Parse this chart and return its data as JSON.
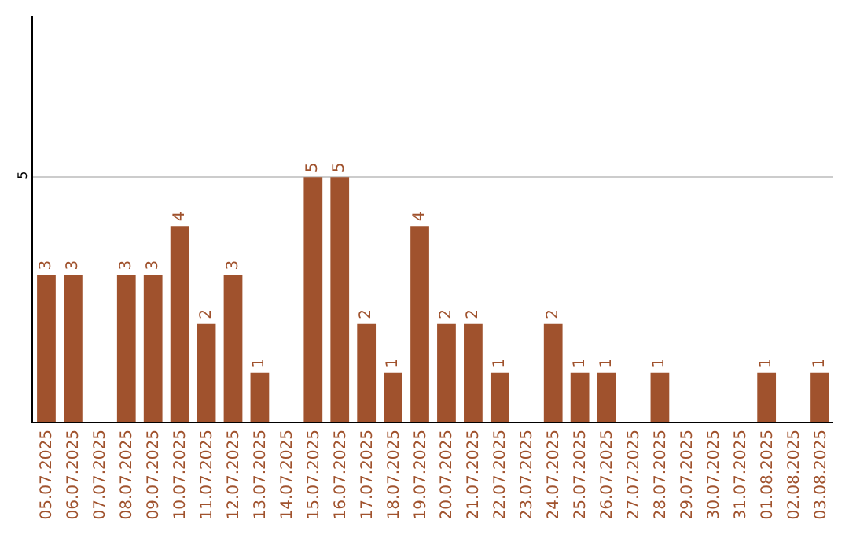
{
  "chart_data": {
    "type": "bar",
    "categories": [
      "05.07.2025",
      "06.07.2025",
      "07.07.2025",
      "08.07.2025",
      "09.07.2025",
      "10.07.2025",
      "11.07.2025",
      "12.07.2025",
      "13.07.2025",
      "14.07.2025",
      "15.07.2025",
      "16.07.2025",
      "17.07.2025",
      "18.07.2025",
      "19.07.2025",
      "20.07.2025",
      "21.07.2025",
      "22.07.2025",
      "23.07.2025",
      "24.07.2025",
      "25.07.2025",
      "26.07.2025",
      "27.07.2025",
      "28.07.2025",
      "29.07.2025",
      "30.07.2025",
      "31.07.2025",
      "01.08.2025",
      "02.08.2025",
      "03.08.2025"
    ],
    "values": [
      3,
      3,
      null,
      3,
      3,
      4,
      2,
      3,
      1,
      null,
      5,
      5,
      2,
      1,
      4,
      2,
      2,
      1,
      null,
      2,
      1,
      1,
      null,
      1,
      null,
      null,
      null,
      1,
      null,
      1
    ],
    "color": "#a0522d",
    "ylim": [
      0,
      8.3
    ],
    "yticks": [
      5
    ],
    "grid": "y",
    "data_labels": true
  }
}
